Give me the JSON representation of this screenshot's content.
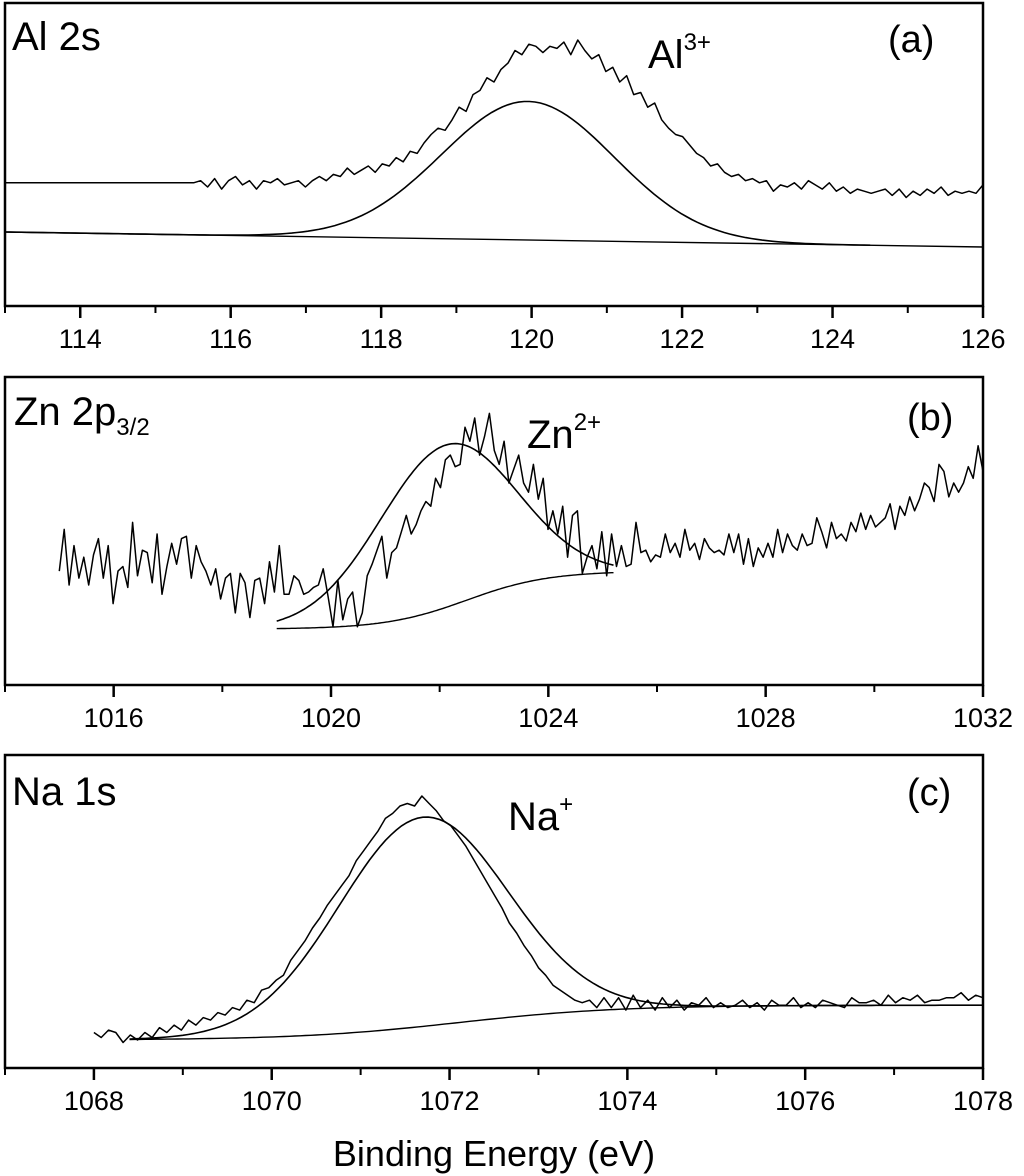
{
  "x_axis_title": "Binding Energy (eV)",
  "chart_data": [
    {
      "type": "line",
      "panel_tag": "(a)",
      "element_label": "Al 2s",
      "element_label_main": "Al 2s",
      "species_label_main": "Al",
      "species_label_sup": "3+",
      "xlim": [
        113,
        126
      ],
      "xticks": [
        "114",
        "116",
        "118",
        "120",
        "122",
        "124",
        "126"
      ],
      "tick_values": [
        114,
        116,
        118,
        120,
        122,
        124,
        126
      ],
      "minor_tick_values": [
        113,
        115,
        117,
        119,
        121,
        123,
        125
      ],
      "ylim": [
        0,
        1
      ],
      "grid": false,
      "series": [
        {
          "values_from": "raw",
          "x_range": [
            113.0,
            126.0
          ],
          "y": [
            0.32,
            0.32,
            0.32,
            0.32,
            0.32,
            0.32,
            0.32,
            0.32,
            0.32,
            0.32,
            0.32,
            0.32,
            0.32,
            0.32,
            0.32,
            0.32,
            0.32,
            0.32,
            0.32,
            0.32,
            0.32,
            0.32,
            0.32,
            0.32,
            0.32,
            0.32,
            0.32,
            0.32,
            0.33,
            0.3,
            0.34,
            0.29,
            0.33,
            0.35,
            0.31,
            0.33,
            0.29,
            0.33,
            0.32,
            0.34,
            0.31,
            0.32,
            0.33,
            0.3,
            0.33,
            0.35,
            0.33,
            0.36,
            0.35,
            0.39,
            0.36,
            0.38,
            0.4,
            0.37,
            0.41,
            0.4,
            0.44,
            0.42,
            0.47,
            0.46,
            0.51,
            0.55,
            0.58,
            0.57,
            0.62,
            0.68,
            0.66,
            0.74,
            0.76,
            0.82,
            0.8,
            0.86,
            0.89,
            0.95,
            0.93,
            0.98,
            0.97,
            0.94,
            0.97,
            0.96,
            0.99,
            0.93,
            1.0,
            0.95,
            0.91,
            0.93,
            0.85,
            0.87,
            0.8,
            0.83,
            0.74,
            0.75,
            0.68,
            0.7,
            0.62,
            0.58,
            0.55,
            0.54,
            0.5,
            0.46,
            0.44,
            0.4,
            0.41,
            0.37,
            0.35,
            0.36,
            0.33,
            0.34,
            0.32,
            0.33,
            0.28,
            0.31,
            0.3,
            0.32,
            0.29,
            0.33,
            0.31,
            0.29,
            0.32,
            0.28,
            0.3,
            0.27,
            0.29,
            0.28,
            0.27,
            0.28,
            0.29,
            0.26,
            0.29,
            0.25,
            0.28,
            0.26,
            0.29,
            0.27,
            0.3,
            0.26,
            0.28,
            0.27,
            0.28,
            0.27,
            0.31
          ]
        }
      ]
    },
    {
      "type": "line",
      "panel_tag": "(b)",
      "element_label": "Zn 2p3/2",
      "element_label_main": "Zn 2p",
      "element_label_sub": "3/2",
      "species_label_main": "Zn",
      "species_label_sup": "2+",
      "xlim": [
        1014,
        1032
      ],
      "xticks": [
        "1016",
        "1020",
        "1024",
        "1028",
        "1032"
      ],
      "tick_values": [
        1016,
        1020,
        1024,
        1028,
        1032
      ],
      "minor_tick_values": [
        1014,
        1018,
        1022,
        1026,
        1030
      ],
      "ylim": [
        0,
        1
      ],
      "grid": false,
      "series": [
        {
          "values_from": "raw",
          "x_range": [
            1015.0,
            1032.0
          ],
          "y": [
            0.34,
            0.52,
            0.28,
            0.45,
            0.31,
            0.4,
            0.28,
            0.41,
            0.48,
            0.31,
            0.45,
            0.2,
            0.34,
            0.36,
            0.27,
            0.55,
            0.32,
            0.43,
            0.42,
            0.29,
            0.5,
            0.24,
            0.36,
            0.46,
            0.37,
            0.48,
            0.49,
            0.31,
            0.45,
            0.38,
            0.34,
            0.28,
            0.35,
            0.22,
            0.31,
            0.33,
            0.16,
            0.33,
            0.29,
            0.14,
            0.3,
            0.31,
            0.2,
            0.38,
            0.25,
            0.45,
            0.24,
            0.24,
            0.32,
            0.3,
            0.24,
            0.25,
            0.27,
            0.28,
            0.35,
            0.23,
            0.1,
            0.3,
            0.13,
            0.22,
            0.25,
            0.1,
            0.16,
            0.32,
            0.37,
            0.43,
            0.49,
            0.31,
            0.42,
            0.44,
            0.51,
            0.58,
            0.5,
            0.54,
            0.6,
            0.64,
            0.62,
            0.74,
            0.7,
            0.82,
            0.84,
            0.79,
            0.8,
            0.96,
            0.9,
            1.0,
            0.84,
            0.92,
            1.02,
            0.86,
            0.8,
            0.9,
            0.72,
            0.78,
            0.84,
            0.72,
            0.68,
            0.8,
            0.65,
            0.74,
            0.52,
            0.6,
            0.5,
            0.62,
            0.4,
            0.58,
            0.6,
            0.33,
            0.4,
            0.45,
            0.35,
            0.51,
            0.32,
            0.5,
            0.36,
            0.45,
            0.36,
            0.37,
            0.55,
            0.42,
            0.43,
            0.38,
            0.41,
            0.4,
            0.5,
            0.42,
            0.46,
            0.4,
            0.52,
            0.43,
            0.46,
            0.39,
            0.48,
            0.44,
            0.42,
            0.43,
            0.41,
            0.5,
            0.42,
            0.5,
            0.37,
            0.48,
            0.36,
            0.44,
            0.4,
            0.46,
            0.4,
            0.52,
            0.42,
            0.5,
            0.45,
            0.43,
            0.5,
            0.45,
            0.46,
            0.57,
            0.51,
            0.44,
            0.55,
            0.48,
            0.5,
            0.47,
            0.55,
            0.51,
            0.59,
            0.52,
            0.58,
            0.53,
            0.55,
            0.57,
            0.63,
            0.52,
            0.62,
            0.58,
            0.66,
            0.6,
            0.65,
            0.72,
            0.7,
            0.64,
            0.8,
            0.77,
            0.66,
            0.72,
            0.68,
            0.72,
            0.79,
            0.74,
            0.88,
            0.77
          ]
        }
      ]
    },
    {
      "type": "line",
      "panel_tag": "(c)",
      "element_label": "Na 1s",
      "element_label_main": "Na 1s",
      "species_label_main": "Na",
      "species_label_sup": "+",
      "xlim": [
        1067.0,
        1078.0
      ],
      "xticks": [
        "1068",
        "1070",
        "1072",
        "1074",
        "1076",
        "1078"
      ],
      "tick_values": [
        1068,
        1070,
        1072,
        1074,
        1076,
        1078
      ],
      "minor_tick_values": [
        1067,
        1069,
        1071,
        1073,
        1075,
        1077
      ],
      "ylim": [
        0,
        1
      ],
      "grid": false,
      "series": [
        {
          "values_from": "raw",
          "x_range": [
            1068.0,
            1078.0
          ],
          "y": [
            0.05,
            0.03,
            0.06,
            0.05,
            0.01,
            0.04,
            0.02,
            0.05,
            0.03,
            0.07,
            0.05,
            0.08,
            0.06,
            0.1,
            0.08,
            0.11,
            0.1,
            0.13,
            0.12,
            0.15,
            0.14,
            0.18,
            0.17,
            0.22,
            0.23,
            0.26,
            0.28,
            0.34,
            0.38,
            0.42,
            0.47,
            0.51,
            0.56,
            0.6,
            0.64,
            0.68,
            0.74,
            0.78,
            0.82,
            0.86,
            0.91,
            0.93,
            0.96,
            0.97,
            0.96,
            1.0,
            0.97,
            0.94,
            0.9,
            0.88,
            0.84,
            0.8,
            0.75,
            0.7,
            0.65,
            0.6,
            0.55,
            0.49,
            0.45,
            0.4,
            0.36,
            0.31,
            0.28,
            0.24,
            0.22,
            0.2,
            0.18,
            0.17,
            0.18,
            0.15,
            0.19,
            0.15,
            0.19,
            0.14,
            0.2,
            0.15,
            0.18,
            0.14,
            0.19,
            0.15,
            0.18,
            0.14,
            0.17,
            0.16,
            0.19,
            0.15,
            0.17,
            0.15,
            0.16,
            0.18,
            0.15,
            0.17,
            0.14,
            0.18,
            0.16,
            0.16,
            0.19,
            0.15,
            0.17,
            0.15,
            0.18,
            0.17,
            0.16,
            0.15,
            0.19,
            0.17,
            0.17,
            0.18,
            0.16,
            0.2,
            0.17,
            0.19,
            0.18,
            0.2,
            0.17,
            0.18,
            0.18,
            0.19,
            0.19,
            0.21,
            0.18,
            0.2,
            0.19
          ]
        }
      ]
    }
  ]
}
